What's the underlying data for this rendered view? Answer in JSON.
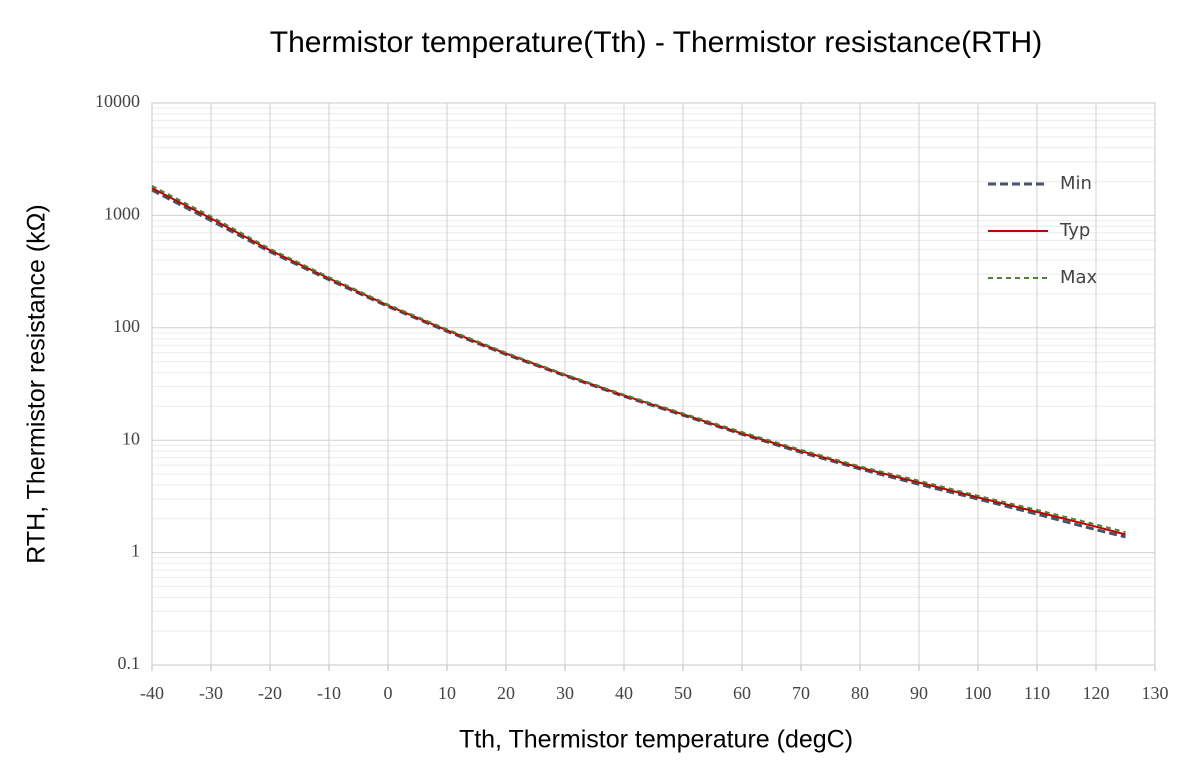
{
  "chart_data": {
    "type": "line",
    "title": "Thermistor temperature(Tth) - Thermistor resistance(RTH)",
    "xlabel": "Tth, Thermistor temperature (degC)",
    "ylabel": "RTH, Thermistor resistance (kΩ)",
    "x": [
      -40,
      -30,
      -20,
      -10,
      0,
      10,
      20,
      30,
      40,
      50,
      60,
      70,
      80,
      90,
      100,
      110,
      120,
      125
    ],
    "series": [
      {
        "name": "Min",
        "color": "#44546a",
        "linestyle": "dashed",
        "values": [
          1680,
          900,
          475,
          268,
          155,
          93,
          58,
          37.5,
          24.6,
          16.7,
          11.3,
          7.8,
          5.55,
          4.05,
          3.0,
          2.2,
          1.6,
          1.38
        ]
      },
      {
        "name": "Typ",
        "color": "#c00000",
        "linestyle": "solid",
        "values": [
          1750,
          940,
          490,
          275,
          158,
          95,
          59,
          38,
          25,
          17,
          11.5,
          8,
          5.7,
          4.2,
          3.1,
          2.3,
          1.7,
          1.45
        ]
      },
      {
        "name": "Max",
        "color": "#548235",
        "linestyle": "dashed",
        "values": [
          1830,
          980,
          505,
          282,
          161,
          97,
          60,
          38.5,
          25.4,
          17.3,
          11.8,
          8.2,
          5.85,
          4.35,
          3.2,
          2.4,
          1.78,
          1.52
        ]
      }
    ],
    "xlim": [
      -40,
      130
    ],
    "xticks": [
      -40,
      -30,
      -20,
      -10,
      0,
      10,
      20,
      30,
      40,
      50,
      60,
      70,
      80,
      90,
      100,
      110,
      120,
      130
    ],
    "ylim": [
      0.1,
      10000
    ],
    "yticks": [
      0.1,
      1,
      10,
      100,
      1000,
      10000
    ],
    "yminorticks": [
      0.2,
      0.3,
      0.4,
      0.5,
      0.6,
      0.7,
      0.8,
      0.9,
      2,
      3,
      4,
      5,
      6,
      7,
      8,
      9,
      20,
      30,
      40,
      50,
      60,
      70,
      80,
      90,
      200,
      300,
      400,
      500,
      600,
      700,
      800,
      900,
      2000,
      3000,
      4000,
      5000,
      6000,
      7000,
      8000,
      9000
    ],
    "ylog": true,
    "grid": true,
    "legend": "right"
  }
}
